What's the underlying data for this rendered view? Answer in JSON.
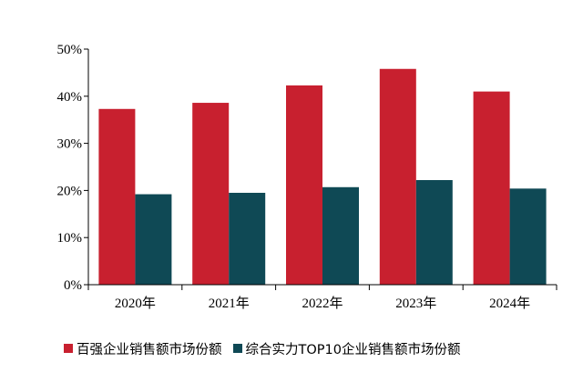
{
  "chart_data": {
    "type": "bar",
    "categories": [
      "2020年",
      "2021年",
      "2022年",
      "2023年",
      "2024年"
    ],
    "series": [
      {
        "name": "百强企业销售额市场份额",
        "values": [
          37.3,
          38.6,
          42.3,
          45.8,
          41.0
        ],
        "color": "#c8202f"
      },
      {
        "name": "综合实力TOP10企业销售额市场份额",
        "values": [
          19.2,
          19.5,
          20.7,
          22.2,
          20.4
        ],
        "color": "#0f4955"
      }
    ],
    "y_ticks": [
      "0%",
      "10%",
      "20%",
      "30%",
      "40%",
      "50%"
    ],
    "ylim": [
      0,
      50
    ],
    "grid": false,
    "legend_position": "bottom",
    "title": "",
    "xlabel": "",
    "ylabel": ""
  }
}
